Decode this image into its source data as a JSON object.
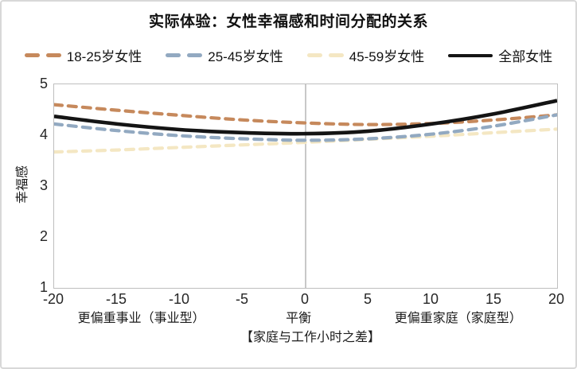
{
  "figure": {
    "background": "#ffffff",
    "border_color": "#d8d8d8"
  },
  "chart_data": {
    "type": "line",
    "title": "实际体验：女性幸福感和时间分配的关系",
    "xlabel": "【家庭与工作小时之差】",
    "ylabel": "幸福感",
    "xlim": [
      -20,
      20
    ],
    "ylim": [
      1,
      5
    ],
    "x": [
      -20,
      -15,
      -10,
      -5,
      0,
      5,
      10,
      15,
      20
    ],
    "x_tick_labels": [
      "-20",
      "-15",
      "-10",
      "-5",
      "0",
      "5",
      "10",
      "15",
      "20"
    ],
    "y_ticks": [
      5,
      4,
      3,
      2,
      1
    ],
    "grid": {
      "vertical_zero_line": true,
      "zero_line_color": "#ababab"
    },
    "legend_position": "top",
    "series": [
      {
        "name": "45-59岁女性",
        "color": "#f4e7c3",
        "dashed": true,
        "values": [
          3.67,
          3.71,
          3.76,
          3.81,
          3.86,
          3.92,
          3.98,
          4.05,
          4.12
        ]
      },
      {
        "name": "18-25岁女性",
        "color": "#c6895c",
        "dashed": true,
        "values": [
          4.6,
          4.49,
          4.39,
          4.3,
          4.24,
          4.21,
          4.23,
          4.3,
          4.4
        ]
      },
      {
        "name": "25-45岁女性",
        "color": "#92a9c1",
        "dashed": true,
        "values": [
          4.22,
          4.09,
          3.99,
          3.93,
          3.9,
          3.93,
          4.02,
          4.18,
          4.4
        ]
      },
      {
        "name": "全部女性",
        "color": "#141414",
        "dashed": false,
        "values": [
          4.37,
          4.22,
          4.11,
          4.05,
          4.03,
          4.08,
          4.22,
          4.42,
          4.68
        ]
      }
    ],
    "legend_order": [
      "18-25岁女性",
      "25-45岁女性",
      "45-59岁女性",
      "全部女性"
    ],
    "annotations": [
      {
        "text": "更偏重事业（事业型）",
        "x": -13
      },
      {
        "text": "平衡",
        "x": -0.5
      },
      {
        "text": "更偏重家庭（家庭型）",
        "x": 12.2
      }
    ],
    "axis_colors": {
      "frame": "#bfbfbf",
      "tick_text": "#262626"
    }
  }
}
